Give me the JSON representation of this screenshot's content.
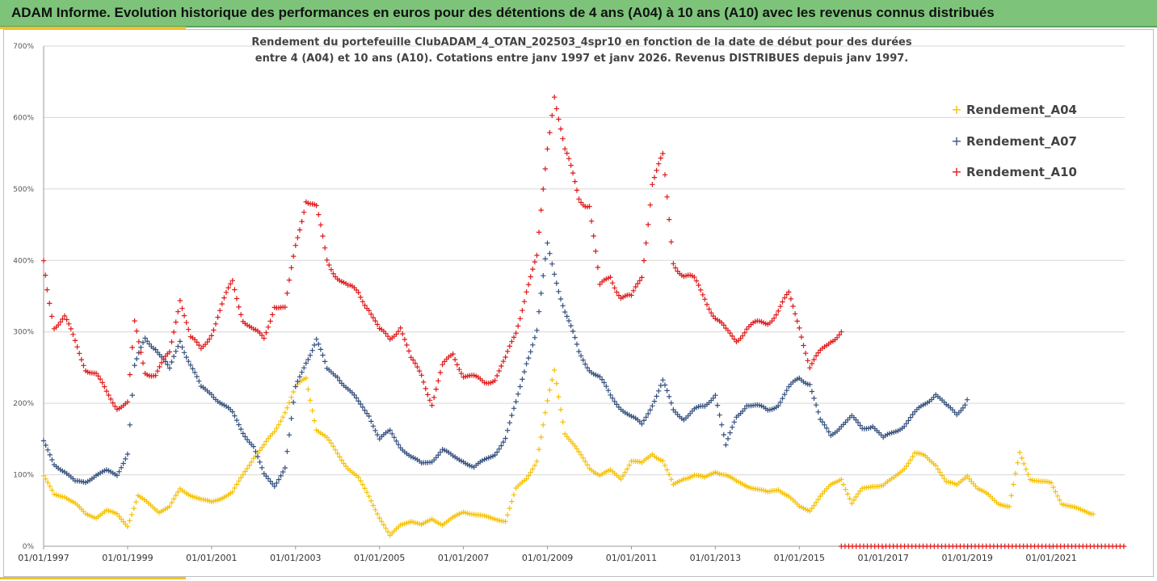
{
  "header": {
    "title": "ADAM Informe. Evolution historique des performances en euros pour des détentions de 4 ans (A04) à 10 ans (A10) avec les revenus connus distribués"
  },
  "colors": {
    "banner": "#7dc47a",
    "accent": "#f0c030",
    "A04": "#f5c000",
    "A07": "#34507e",
    "A10": "#e01818"
  },
  "chart_data": {
    "type": "scatter",
    "title_lines": [
      "Rendement du portefeuille ClubADAM_4_OTAN_202503_4spr10  en fonction de la date de début pour des durées",
      "entre 4 (A04) et 10 ans (A10). Cotations entre janv 1997 et janv 2026. Revenus DISTRIBUES depuis janv 1997."
    ],
    "x_range": [
      "1997-01-01",
      "2022-10-01"
    ],
    "x_ticks": [
      "01/01/1997",
      "01/01/1999",
      "01/01/2001",
      "01/01/2003",
      "01/01/2005",
      "01/01/2007",
      "01/01/2009",
      "01/01/2011",
      "01/01/2013",
      "01/01/2015",
      "01/01/2017",
      "01/01/2019",
      "01/01/2021"
    ],
    "y_ticks": [
      "0%",
      "100%",
      "200%",
      "300%",
      "400%",
      "500%",
      "600%",
      "700%"
    ],
    "ylim": [
      0,
      700
    ],
    "y_unit": "%",
    "grid": "horizontal",
    "legend_position": "right",
    "marker": "+",
    "series": [
      {
        "name": "Rendement_A04",
        "color_key": "A04",
        "points": [
          [
            "1997-01",
            98
          ],
          [
            "1997-04",
            72
          ],
          [
            "1997-07",
            70
          ],
          [
            "1997-10",
            60
          ],
          [
            "1998-01",
            45
          ],
          [
            "1998-04",
            40
          ],
          [
            "1998-07",
            50
          ],
          [
            "1998-10",
            45
          ],
          [
            "1999-01",
            28
          ],
          [
            "1999-04",
            70
          ],
          [
            "1999-07",
            60
          ],
          [
            "1999-10",
            48
          ],
          [
            "2000-01",
            55
          ],
          [
            "2000-04",
            80
          ],
          [
            "2000-07",
            72
          ],
          [
            "2000-10",
            65
          ],
          [
            "2001-01",
            62
          ],
          [
            "2001-04",
            68
          ],
          [
            "2001-07",
            75
          ],
          [
            "2001-10",
            100
          ],
          [
            "2002-01",
            125
          ],
          [
            "2002-04",
            140
          ],
          [
            "2002-07",
            160
          ],
          [
            "2002-10",
            190
          ],
          [
            "2003-01",
            220
          ],
          [
            "2003-04",
            235
          ],
          [
            "2003-07",
            165
          ],
          [
            "2003-10",
            150
          ],
          [
            "2004-01",
            130
          ],
          [
            "2004-04",
            110
          ],
          [
            "2004-07",
            95
          ],
          [
            "2004-10",
            70
          ],
          [
            "2005-01",
            40
          ],
          [
            "2005-04",
            15
          ],
          [
            "2005-07",
            30
          ],
          [
            "2005-10",
            35
          ],
          [
            "2006-01",
            30
          ],
          [
            "2006-04",
            38
          ],
          [
            "2006-07",
            30
          ],
          [
            "2006-10",
            40
          ],
          [
            "2007-01",
            48
          ],
          [
            "2007-04",
            45
          ],
          [
            "2007-07",
            42
          ],
          [
            "2007-10",
            38
          ],
          [
            "2008-01",
            35
          ],
          [
            "2008-04",
            80
          ],
          [
            "2008-07",
            95
          ],
          [
            "2008-10",
            120
          ],
          [
            "2009-01",
            200
          ],
          [
            "2009-03",
            245
          ],
          [
            "2009-06",
            160
          ],
          [
            "2009-10",
            130
          ],
          [
            "2010-01",
            110
          ],
          [
            "2010-04",
            100
          ],
          [
            "2010-07",
            105
          ],
          [
            "2010-10",
            95
          ],
          [
            "2011-01",
            120
          ],
          [
            "2011-04",
            115
          ],
          [
            "2011-07",
            130
          ],
          [
            "2011-10",
            120
          ],
          [
            "2012-01",
            85
          ],
          [
            "2012-04",
            95
          ],
          [
            "2012-07",
            100
          ],
          [
            "2012-10",
            95
          ],
          [
            "2013-01",
            105
          ],
          [
            "2013-04",
            100
          ],
          [
            "2013-07",
            90
          ],
          [
            "2013-10",
            85
          ],
          [
            "2014-01",
            80
          ],
          [
            "2014-04",
            75
          ],
          [
            "2014-07",
            80
          ],
          [
            "2014-10",
            70
          ],
          [
            "2015-01",
            55
          ],
          [
            "2015-04",
            50
          ],
          [
            "2015-07",
            70
          ],
          [
            "2015-10",
            85
          ],
          [
            "2016-01",
            95
          ],
          [
            "2016-04",
            60
          ],
          [
            "2016-07",
            80
          ],
          [
            "2016-10",
            85
          ],
          [
            "2017-01",
            85
          ],
          [
            "2017-04",
            95
          ],
          [
            "2017-07",
            110
          ],
          [
            "2017-10",
            130
          ],
          [
            "2018-01",
            125
          ],
          [
            "2018-04",
            115
          ],
          [
            "2018-07",
            90
          ],
          [
            "2018-10",
            85
          ],
          [
            "2019-01",
            100
          ],
          [
            "2019-04",
            80
          ],
          [
            "2019-07",
            72
          ],
          [
            "2019-10",
            60
          ],
          [
            "2020-01",
            55
          ],
          [
            "2020-04",
            130
          ],
          [
            "2020-07",
            95
          ],
          [
            "2020-10",
            90
          ],
          [
            "2021-01",
            88
          ],
          [
            "2021-04",
            60
          ],
          [
            "2021-07",
            55
          ],
          [
            "2021-10",
            50
          ],
          [
            "2022-01",
            45
          ]
        ]
      },
      {
        "name": "Rendement_A07",
        "color_key": "A07",
        "points": [
          [
            "1997-01",
            145
          ],
          [
            "1997-04",
            115
          ],
          [
            "1997-07",
            105
          ],
          [
            "1997-10",
            90
          ],
          [
            "1998-01",
            90
          ],
          [
            "1998-04",
            100
          ],
          [
            "1998-07",
            105
          ],
          [
            "1998-10",
            100
          ],
          [
            "1999-01",
            130
          ],
          [
            "1999-03",
            250
          ],
          [
            "1999-06",
            290
          ],
          [
            "1999-09",
            280
          ],
          [
            "2000-01",
            245
          ],
          [
            "2000-04",
            290
          ],
          [
            "2000-07",
            255
          ],
          [
            "2000-10",
            220
          ],
          [
            "2001-01",
            215
          ],
          [
            "2001-04",
            200
          ],
          [
            "2001-07",
            185
          ],
          [
            "2001-10",
            160
          ],
          [
            "2002-01",
            140
          ],
          [
            "2002-04",
            100
          ],
          [
            "2002-07",
            85
          ],
          [
            "2002-10",
            110
          ],
          [
            "2003-01",
            220
          ],
          [
            "2003-04",
            260
          ],
          [
            "2003-07",
            290
          ],
          [
            "2003-10",
            245
          ],
          [
            "2004-01",
            240
          ],
          [
            "2004-04",
            220
          ],
          [
            "2004-07",
            200
          ],
          [
            "2004-10",
            185
          ],
          [
            "2005-01",
            150
          ],
          [
            "2005-04",
            160
          ],
          [
            "2005-07",
            140
          ],
          [
            "2005-10",
            125
          ],
          [
            "2006-01",
            115
          ],
          [
            "2006-04",
            120
          ],
          [
            "2006-07",
            135
          ],
          [
            "2006-10",
            125
          ],
          [
            "2007-01",
            120
          ],
          [
            "2007-04",
            110
          ],
          [
            "2007-07",
            120
          ],
          [
            "2007-10",
            130
          ],
          [
            "2008-01",
            150
          ],
          [
            "2008-04",
            200
          ],
          [
            "2008-07",
            260
          ],
          [
            "2008-10",
            300
          ],
          [
            "2009-01",
            420
          ],
          [
            "2009-03",
            385
          ],
          [
            "2009-06",
            330
          ],
          [
            "2009-10",
            270
          ],
          [
            "2010-01",
            250
          ],
          [
            "2010-04",
            235
          ],
          [
            "2010-07",
            210
          ],
          [
            "2010-10",
            195
          ],
          [
            "2011-01",
            180
          ],
          [
            "2011-04",
            170
          ],
          [
            "2011-07",
            200
          ],
          [
            "2011-10",
            230
          ],
          [
            "2012-01",
            190
          ],
          [
            "2012-04",
            180
          ],
          [
            "2012-07",
            190
          ],
          [
            "2012-10",
            195
          ],
          [
            "2013-01",
            215
          ],
          [
            "2013-04",
            140
          ],
          [
            "2013-07",
            180
          ],
          [
            "2013-10",
            200
          ],
          [
            "2014-01",
            195
          ],
          [
            "2014-04",
            190
          ],
          [
            "2014-07",
            200
          ],
          [
            "2014-10",
            220
          ],
          [
            "2015-01",
            235
          ],
          [
            "2015-04",
            230
          ],
          [
            "2015-07",
            175
          ],
          [
            "2015-10",
            155
          ],
          [
            "2016-01",
            170
          ],
          [
            "2016-04",
            180
          ],
          [
            "2016-07",
            165
          ],
          [
            "2016-10",
            170
          ],
          [
            "2017-01",
            150
          ],
          [
            "2017-04",
            160
          ],
          [
            "2017-07",
            170
          ],
          [
            "2017-10",
            185
          ],
          [
            "2018-01",
            200
          ],
          [
            "2018-04",
            215
          ],
          [
            "2018-07",
            195
          ],
          [
            "2018-10",
            185
          ],
          [
            "2019-01",
            205
          ]
        ]
      },
      {
        "name": "Rendement_A10",
        "color_key": "A10",
        "points": [
          [
            "1997-01",
            395
          ],
          [
            "1997-02",
            360
          ],
          [
            "1997-04",
            310
          ],
          [
            "1997-07",
            320
          ],
          [
            "1997-10",
            285
          ],
          [
            "1998-01",
            250
          ],
          [
            "1998-04",
            240
          ],
          [
            "1998-07",
            215
          ],
          [
            "1998-10",
            195
          ],
          [
            "1999-01",
            200
          ],
          [
            "1999-03",
            310
          ],
          [
            "1999-06",
            245
          ],
          [
            "1999-09",
            240
          ],
          [
            "2000-01",
            270
          ],
          [
            "2000-04",
            350
          ],
          [
            "2000-07",
            290
          ],
          [
            "2000-10",
            275
          ],
          [
            "2001-01",
            300
          ],
          [
            "2001-04",
            335
          ],
          [
            "2001-07",
            370
          ],
          [
            "2001-10",
            320
          ],
          [
            "2002-01",
            300
          ],
          [
            "2002-04",
            290
          ],
          [
            "2002-07",
            340
          ],
          [
            "2002-10",
            330
          ],
          [
            "2003-01",
            420
          ],
          [
            "2003-04",
            490
          ],
          [
            "2003-07",
            470
          ],
          [
            "2003-10",
            400
          ],
          [
            "2004-01",
            380
          ],
          [
            "2004-04",
            360
          ],
          [
            "2004-07",
            355
          ],
          [
            "2004-10",
            335
          ],
          [
            "2005-01",
            300
          ],
          [
            "2005-04",
            290
          ],
          [
            "2005-07",
            310
          ],
          [
            "2005-10",
            260
          ],
          [
            "2006-01",
            240
          ],
          [
            "2006-04",
            200
          ],
          [
            "2006-07",
            250
          ],
          [
            "2006-10",
            270
          ],
          [
            "2007-01",
            240
          ],
          [
            "2007-04",
            235
          ],
          [
            "2007-07",
            230
          ],
          [
            "2007-10",
            235
          ],
          [
            "2008-01",
            260
          ],
          [
            "2008-04",
            300
          ],
          [
            "2008-07",
            360
          ],
          [
            "2008-10",
            400
          ],
          [
            "2009-01",
            560
          ],
          [
            "2009-03",
            640
          ],
          [
            "2009-06",
            550
          ],
          [
            "2009-10",
            490
          ],
          [
            "2010-01",
            480
          ],
          [
            "2010-04",
            360
          ],
          [
            "2010-07",
            380
          ],
          [
            "2010-10",
            350
          ],
          [
            "2011-01",
            345
          ],
          [
            "2011-04",
            380
          ],
          [
            "2011-07",
            510
          ],
          [
            "2011-10",
            540
          ],
          [
            "2012-01",
            400
          ],
          [
            "2012-04",
            380
          ],
          [
            "2012-07",
            370
          ],
          [
            "2012-10",
            350
          ],
          [
            "2013-01",
            320
          ],
          [
            "2013-04",
            300
          ],
          [
            "2013-07",
            290
          ],
          [
            "2013-10",
            305
          ],
          [
            "2014-01",
            310
          ],
          [
            "2014-04",
            315
          ],
          [
            "2014-07",
            330
          ],
          [
            "2014-10",
            350
          ],
          [
            "2015-01",
            310
          ],
          [
            "2015-04",
            250
          ],
          [
            "2015-07",
            270
          ],
          [
            "2015-10",
            290
          ],
          [
            "2016-01",
            300
          ]
        ]
      }
    ],
    "zero_band": {
      "color_key": "A10",
      "x_start": "2016-01",
      "x_end": "2022-10",
      "value": 0
    }
  }
}
